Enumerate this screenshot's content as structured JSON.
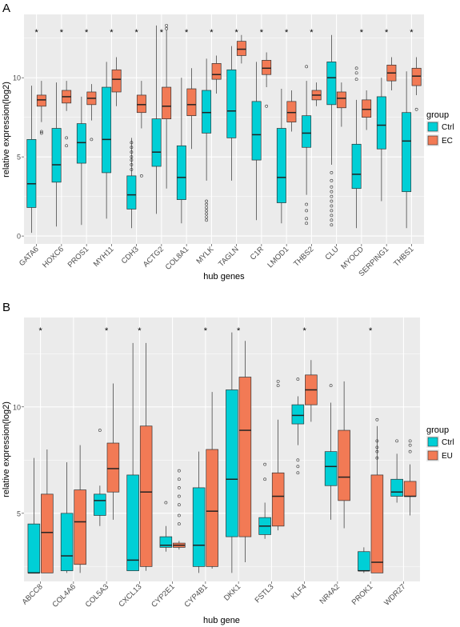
{
  "chart_data": [
    {
      "type": "box",
      "panel_label": "A",
      "xlabel": "hub genes",
      "ylabel": "relative expression(log2)",
      "ylim": [
        -0.5,
        14
      ],
      "yticks": [
        0,
        5,
        10
      ],
      "legend": {
        "title": "group",
        "placement": "right",
        "entries": [
          {
            "name": "Ctrl",
            "color": "#00CFD6"
          },
          {
            "name": "EC",
            "color": "#F27A55"
          }
        ]
      },
      "categories": [
        "GATA6",
        "HOXC6",
        "PROS1",
        "MYH11",
        "CDH3",
        "ACTG2",
        "COL8A1",
        "MYLK",
        "TAGLN",
        "C1R",
        "LMOD1",
        "THBS2",
        "CLU",
        "MYOCD",
        "SERPING1",
        "THBS1"
      ],
      "significance": [
        "*",
        "*",
        "*",
        "*",
        "*",
        "*",
        "*",
        "*",
        "*",
        "*",
        "*",
        "*",
        "",
        "*",
        "*",
        "*"
      ],
      "significance_symbol": "*",
      "series": [
        {
          "name": "Ctrl",
          "boxes": [
            {
              "min": 0.2,
              "q1": 1.8,
              "median": 3.3,
              "q3": 6.1,
              "max": 9.5,
              "outliers": []
            },
            {
              "min": 0.6,
              "q1": 3.4,
              "median": 4.5,
              "q3": 6.8,
              "max": 9.7,
              "outliers": []
            },
            {
              "min": 0.7,
              "q1": 4.6,
              "median": 5.9,
              "q3": 7.1,
              "max": 8.8,
              "outliers": []
            },
            {
              "min": 1.1,
              "q1": 4.0,
              "median": 6.1,
              "q3": 9.4,
              "max": 11.0,
              "outliers": []
            },
            {
              "min": 0.5,
              "q1": 1.7,
              "median": 2.6,
              "q3": 3.8,
              "max": 6.2,
              "outliers": [
                4.2,
                4.5,
                4.8,
                5.0,
                5.3,
                5.6,
                5.9
              ]
            },
            {
              "min": 1.4,
              "q1": 4.4,
              "median": 5.3,
              "q3": 7.4,
              "max": 13.3,
              "outliers": []
            },
            {
              "min": 0.8,
              "q1": 2.3,
              "median": 3.7,
              "q3": 5.7,
              "max": 10.0,
              "outliers": []
            },
            {
              "min": 3.5,
              "q1": 6.5,
              "median": 7.8,
              "q3": 9.2,
              "max": 11.2,
              "outliers": [
                1.0,
                1.2,
                1.4,
                1.6,
                1.8,
                2.0,
                2.2
              ]
            },
            {
              "min": 3.5,
              "q1": 6.2,
              "median": 7.9,
              "q3": 10.5,
              "max": 12.0,
              "outliers": []
            },
            {
              "min": 1.0,
              "q1": 4.8,
              "median": 6.4,
              "q3": 8.5,
              "max": 11.0,
              "outliers": []
            },
            {
              "min": 0.8,
              "q1": 2.1,
              "median": 3.7,
              "q3": 6.8,
              "max": 9.3,
              "outliers": []
            },
            {
              "min": 2.6,
              "q1": 5.6,
              "median": 6.5,
              "q3": 7.6,
              "max": 9.8,
              "outliers": [
                0.8,
                1.1,
                1.6,
                2.0,
                10.7
              ]
            },
            {
              "min": 4.5,
              "q1": 8.3,
              "median": 10.0,
              "q3": 11.0,
              "max": 12.7,
              "outliers": [
                0.7,
                1.0,
                1.3,
                1.6,
                1.9,
                2.2,
                2.5,
                2.8,
                3.1,
                3.5,
                4.0
              ]
            },
            {
              "min": 0.5,
              "q1": 3.0,
              "median": 3.9,
              "q3": 5.8,
              "max": 8.6,
              "outliers": [
                9.9,
                10.3,
                10.6
              ]
            },
            {
              "min": 2.2,
              "q1": 5.5,
              "median": 7.0,
              "q3": 8.8,
              "max": 10.0,
              "outliers": []
            },
            {
              "min": 0.5,
              "q1": 2.8,
              "median": 6.0,
              "q3": 7.8,
              "max": 10.4,
              "outliers": []
            }
          ]
        },
        {
          "name": "EC",
          "boxes": [
            {
              "min": 7.2,
              "q1": 8.2,
              "median": 8.6,
              "q3": 8.9,
              "max": 9.8,
              "outliers": [
                6.5,
                6.6
              ]
            },
            {
              "min": 7.9,
              "q1": 8.4,
              "median": 8.8,
              "q3": 9.2,
              "max": 9.8,
              "outliers": [
                5.7,
                6.2
              ]
            },
            {
              "min": 7.3,
              "q1": 8.3,
              "median": 8.7,
              "q3": 9.1,
              "max": 9.6,
              "outliers": [
                6.1
              ]
            },
            {
              "min": 8.2,
              "q1": 9.1,
              "median": 9.9,
              "q3": 10.5,
              "max": 11.3,
              "outliers": []
            },
            {
              "min": 6.8,
              "q1": 7.8,
              "median": 8.3,
              "q3": 8.9,
              "max": 9.8,
              "outliers": [
                3.8
              ]
            },
            {
              "min": 3.0,
              "q1": 7.4,
              "median": 8.2,
              "q3": 9.4,
              "max": 13.0,
              "outliers": [
                13.1,
                13.3
              ]
            },
            {
              "min": 5.5,
              "q1": 7.6,
              "median": 8.3,
              "q3": 9.3,
              "max": 10.6,
              "outliers": []
            },
            {
              "min": 9.0,
              "q1": 9.9,
              "median": 10.2,
              "q3": 10.9,
              "max": 11.4,
              "outliers": []
            },
            {
              "min": 10.9,
              "q1": 11.4,
              "median": 11.8,
              "q3": 12.3,
              "max": 12.7,
              "outliers": []
            },
            {
              "min": 9.4,
              "q1": 10.2,
              "median": 10.6,
              "q3": 11.1,
              "max": 11.6,
              "outliers": [
                8.2
              ]
            },
            {
              "min": 6.6,
              "q1": 7.2,
              "median": 7.8,
              "q3": 8.5,
              "max": 9.2,
              "outliers": []
            },
            {
              "min": 8.2,
              "q1": 8.6,
              "median": 8.9,
              "q3": 9.2,
              "max": 9.7,
              "outliers": []
            },
            {
              "min": 6.9,
              "q1": 8.1,
              "median": 8.7,
              "q3": 9.1,
              "max": 9.7,
              "outliers": []
            },
            {
              "min": 6.7,
              "q1": 7.5,
              "median": 8.0,
              "q3": 8.6,
              "max": 9.2,
              "outliers": []
            },
            {
              "min": 9.2,
              "q1": 9.8,
              "median": 10.3,
              "q3": 10.8,
              "max": 11.3,
              "outliers": []
            },
            {
              "min": 8.9,
              "q1": 9.5,
              "median": 10.1,
              "q3": 10.6,
              "max": 11.3,
              "outliers": [
                8.0
              ]
            }
          ]
        }
      ]
    },
    {
      "type": "box",
      "panel_label": "B",
      "xlabel": "hub gene",
      "ylabel": "relative expression(log2)",
      "ylim": [
        1.8,
        14.2
      ],
      "yticks": [
        5,
        10
      ],
      "legend": {
        "title": "group",
        "placement": "right",
        "entries": [
          {
            "name": "Ctrl",
            "color": "#00CFD6"
          },
          {
            "name": "EU",
            "color": "#F27A55"
          }
        ]
      },
      "categories": [
        "ABCC8",
        "COL4A6",
        "COL5A3",
        "CXCL13",
        "CYP2E1",
        "CYP4B1",
        "DKK1",
        "FSTL3",
        "KLF4",
        "NR4A2",
        "PROK1",
        "WDR27"
      ],
      "significance": [
        "*",
        "",
        "*",
        "*",
        "",
        "*",
        "*",
        "",
        "*",
        "",
        "*",
        ""
      ],
      "significance_symbol": "*",
      "series": [
        {
          "name": "Ctrl",
          "boxes": [
            {
              "min": 2.2,
              "q1": 2.2,
              "median": 2.2,
              "q3": 4.5,
              "max": 7.6,
              "outliers": []
            },
            {
              "min": 2.2,
              "q1": 2.3,
              "median": 3.0,
              "q3": 5.0,
              "max": 7.4,
              "outliers": []
            },
            {
              "min": 4.4,
              "q1": 4.9,
              "median": 5.6,
              "q3": 5.9,
              "max": 6.3,
              "outliers": [
                8.9
              ]
            },
            {
              "min": 2.3,
              "q1": 2.3,
              "median": 2.8,
              "q3": 6.8,
              "max": 13.0,
              "outliers": []
            },
            {
              "min": 3.2,
              "q1": 3.4,
              "median": 3.5,
              "q3": 3.9,
              "max": 4.4,
              "outliers": [
                5.5
              ]
            },
            {
              "min": 2.2,
              "q1": 2.5,
              "median": 3.5,
              "q3": 6.2,
              "max": 7.9,
              "outliers": []
            },
            {
              "min": 2.2,
              "q1": 3.9,
              "median": 6.6,
              "q3": 10.8,
              "max": 13.5,
              "outliers": []
            },
            {
              "min": 3.8,
              "q1": 4.0,
              "median": 4.4,
              "q3": 4.8,
              "max": 5.5,
              "outliers": [
                6.6,
                7.3
              ]
            },
            {
              "min": 8.2,
              "q1": 9.2,
              "median": 9.6,
              "q3": 10.1,
              "max": 10.5,
              "outliers": [
                6.9,
                7.2,
                7.5,
                11.3
              ]
            },
            {
              "min": 4.7,
              "q1": 6.3,
              "median": 7.2,
              "q3": 7.9,
              "max": 10.2,
              "outliers": [
                11.0
              ]
            },
            {
              "min": 2.2,
              "q1": 2.3,
              "median": 2.3,
              "q3": 3.2,
              "max": 3.4,
              "outliers": []
            },
            {
              "min": 5.5,
              "q1": 5.8,
              "median": 6.0,
              "q3": 6.6,
              "max": 7.8,
              "outliers": [
                8.4
              ]
            }
          ]
        },
        {
          "name": "EU",
          "boxes": [
            {
              "min": 2.2,
              "q1": 2.2,
              "median": 4.1,
              "q3": 5.9,
              "max": 8.0,
              "outliers": []
            },
            {
              "min": 2.2,
              "q1": 2.6,
              "median": 4.6,
              "q3": 6.1,
              "max": 8.2,
              "outliers": []
            },
            {
              "min": 4.7,
              "q1": 6.0,
              "median": 7.1,
              "q3": 8.3,
              "max": 11.1,
              "outliers": []
            },
            {
              "min": 2.3,
              "q1": 2.5,
              "median": 6.0,
              "q3": 9.1,
              "max": 13.0,
              "outliers": []
            },
            {
              "min": 3.3,
              "q1": 3.4,
              "median": 3.5,
              "q3": 3.6,
              "max": 3.7,
              "outliers": [
                4.5,
                4.9,
                5.4,
                5.8,
                6.2,
                6.6,
                7.0
              ]
            },
            {
              "min": 2.4,
              "q1": 2.5,
              "median": 5.1,
              "q3": 8.0,
              "max": 10.7,
              "outliers": []
            },
            {
              "min": 2.7,
              "q1": 3.9,
              "median": 8.9,
              "q3": 11.4,
              "max": 13.1,
              "outliers": []
            },
            {
              "min": 4.2,
              "q1": 4.4,
              "median": 5.8,
              "q3": 6.9,
              "max": 9.4,
              "outliers": [
                11.0,
                11.2
              ]
            },
            {
              "min": 9.3,
              "q1": 10.1,
              "median": 10.8,
              "q3": 11.5,
              "max": 12.2,
              "outliers": []
            },
            {
              "min": 4.3,
              "q1": 5.6,
              "median": 6.7,
              "q3": 8.9,
              "max": 11.2,
              "outliers": []
            },
            {
              "min": 2.2,
              "q1": 2.2,
              "median": 2.7,
              "q3": 6.8,
              "max": 9.1,
              "outliers": [
                7.6,
                7.9,
                8.1,
                8.4,
                9.4
              ]
            },
            {
              "min": 4.9,
              "q1": 5.8,
              "median": 5.8,
              "q3": 6.5,
              "max": 7.3,
              "outliers": [
                7.9,
                8.2,
                8.4
              ]
            }
          ]
        }
      ]
    }
  ]
}
